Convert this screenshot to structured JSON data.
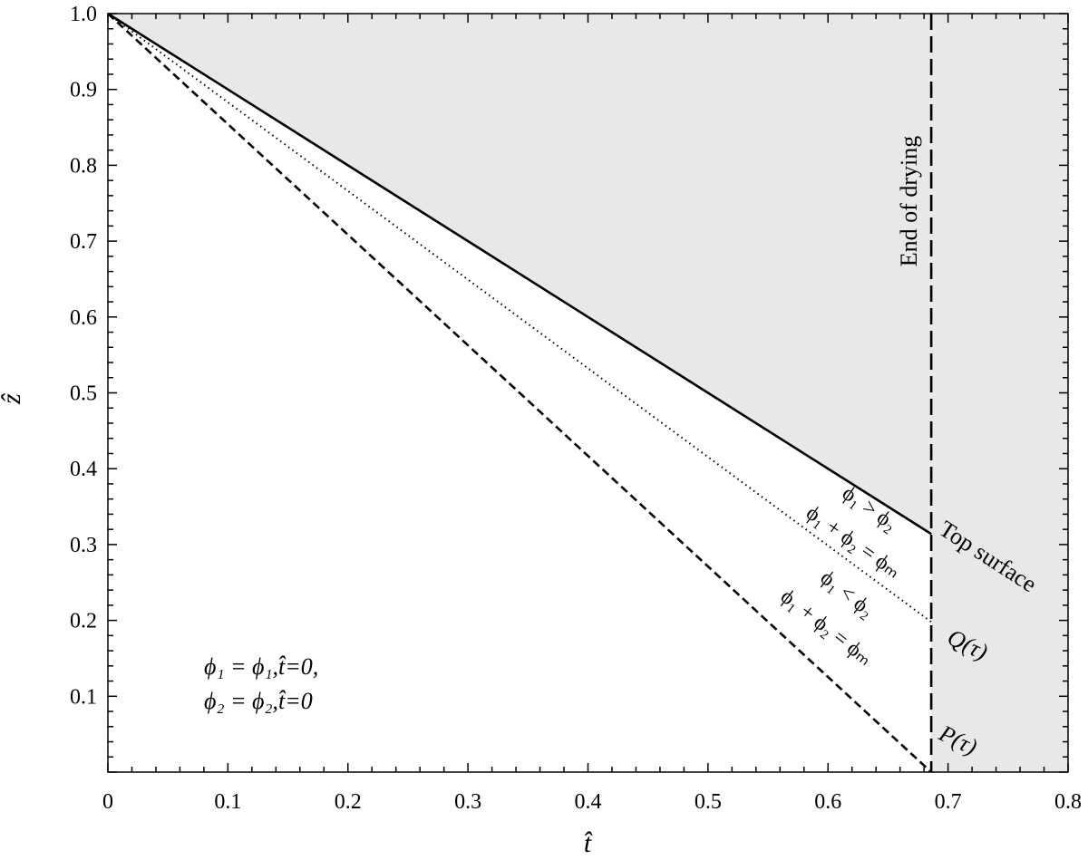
{
  "chart_data": {
    "type": "line",
    "xlabel": "t̂",
    "ylabel": "ẑ",
    "xlim": [
      0,
      0.8
    ],
    "ylim": [
      0,
      1.0
    ],
    "x_ticks": [
      "0",
      "0.1",
      "0.2",
      "0.3",
      "0.4",
      "0.5",
      "0.6",
      "0.7",
      "0.8"
    ],
    "y_ticks": [
      "0.1",
      "0.2",
      "0.3",
      "0.4",
      "0.5",
      "0.6",
      "0.7",
      "0.8",
      "0.9",
      "1.0"
    ],
    "grid": false,
    "series": [
      {
        "key": "top",
        "style": "solid",
        "x": [
          0,
          0.686
        ],
        "y": [
          1.0,
          0.314
        ]
      },
      {
        "key": "q",
        "style": "dotted",
        "x": [
          0,
          0.686
        ],
        "y": [
          1.0,
          0.198
        ]
      },
      {
        "key": "p",
        "style": "dashed",
        "x": [
          0,
          0.686
        ],
        "y": [
          1.0,
          0.0
        ]
      }
    ],
    "end_of_drying": {
      "x": 0.686,
      "label": "End of drying"
    },
    "shaded_regions": [
      {
        "description": "above top surface",
        "color": "#e8e8e8"
      },
      {
        "description": "after end of drying",
        "color": "#e8e8e8"
      }
    ],
    "labels": {
      "top_surface": "Top surface",
      "q": "Q(τ)",
      "p": "P(τ)"
    },
    "annotations": {
      "upper_1": "ϕ₁ > ϕ₂",
      "upper_2": "ϕ₁ + ϕ₂ = ϕₘ",
      "lower_1": "ϕ₁ < ϕ₂",
      "lower_2": "ϕ₁ + ϕ₂ = ϕₘ",
      "init_1": "ϕ₁ = ϕ₁,t̂=0,",
      "init_2": "ϕ₂ = ϕ₂,t̂=0"
    }
  }
}
